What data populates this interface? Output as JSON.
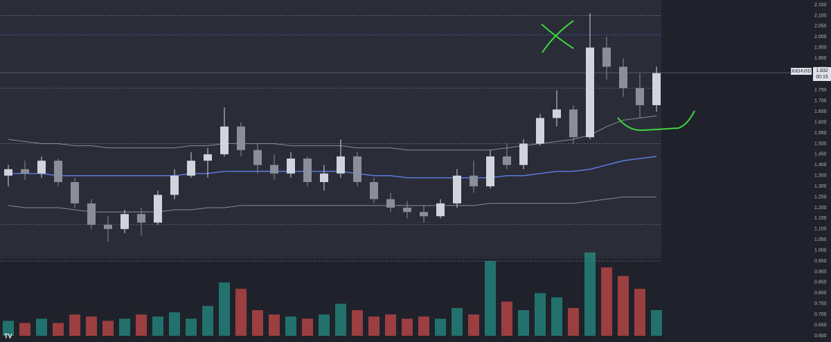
{
  "chart_data": {
    "type": "candlestick",
    "symbol": "EIGEHUSDT",
    "last_price": 1.832,
    "timer": "00:15",
    "open": [
      1.35,
      1.38,
      1.36,
      1.42,
      1.32,
      1.22,
      1.12,
      1.1,
      1.17,
      1.13,
      1.26,
      1.35,
      1.42,
      1.45,
      1.58,
      1.47,
      1.4,
      1.36,
      1.43,
      1.32,
      1.36,
      1.44,
      1.32,
      1.24,
      1.2,
      1.18,
      1.16,
      1.22,
      1.35,
      1.3,
      1.44,
      1.4,
      1.5,
      1.62,
      1.66,
      1.53,
      1.95,
      1.86,
      1.76,
      1.68
    ],
    "high": [
      1.4,
      1.42,
      1.44,
      1.43,
      1.34,
      1.24,
      1.16,
      1.19,
      1.2,
      1.28,
      1.38,
      1.46,
      1.48,
      1.67,
      1.6,
      1.5,
      1.45,
      1.46,
      1.44,
      1.4,
      1.52,
      1.46,
      1.34,
      1.27,
      1.23,
      1.21,
      1.24,
      1.38,
      1.42,
      1.47,
      1.5,
      1.52,
      1.64,
      1.75,
      1.68,
      2.11,
      2.0,
      1.9,
      1.83,
      1.86
    ],
    "low": [
      1.3,
      1.33,
      1.34,
      1.3,
      1.2,
      1.1,
      1.04,
      1.08,
      1.07,
      1.12,
      1.24,
      1.34,
      1.34,
      1.44,
      1.44,
      1.36,
      1.33,
      1.34,
      1.3,
      1.28,
      1.34,
      1.3,
      1.22,
      1.18,
      1.15,
      1.13,
      1.15,
      1.2,
      1.27,
      1.29,
      1.38,
      1.38,
      1.49,
      1.58,
      1.5,
      1.52,
      1.8,
      1.72,
      1.62,
      1.65
    ],
    "close": [
      1.38,
      1.36,
      1.42,
      1.32,
      1.22,
      1.12,
      1.1,
      1.17,
      1.13,
      1.26,
      1.35,
      1.42,
      1.45,
      1.58,
      1.47,
      1.4,
      1.36,
      1.43,
      1.32,
      1.36,
      1.44,
      1.32,
      1.24,
      1.2,
      1.18,
      1.16,
      1.22,
      1.35,
      1.3,
      1.44,
      1.4,
      1.5,
      1.62,
      1.66,
      1.53,
      1.95,
      1.86,
      1.76,
      1.68,
      1.83
    ],
    "volume_top": [
      0.67,
      0.66,
      0.68,
      0.66,
      0.7,
      0.69,
      0.67,
      0.68,
      0.7,
      0.69,
      0.71,
      0.68,
      0.74,
      0.85,
      0.82,
      0.72,
      0.7,
      0.69,
      0.68,
      0.7,
      0.75,
      0.72,
      0.69,
      0.7,
      0.68,
      0.69,
      0.68,
      0.73,
      0.7,
      0.95,
      0.76,
      0.72,
      0.8,
      0.78,
      0.73,
      0.99,
      0.92,
      0.88,
      0.82,
      0.72
    ],
    "up_color": "#d1d4dc",
    "down_color": "#8a8e99",
    "volume_up_color": "#26a69a",
    "volume_down_color": "#ef5350",
    "indicators": [
      {
        "color": "#5b7be0",
        "values": [
          1.36,
          1.36,
          1.36,
          1.35,
          1.35,
          1.35,
          1.35,
          1.35,
          1.35,
          1.35,
          1.35,
          1.36,
          1.36,
          1.37,
          1.37,
          1.37,
          1.37,
          1.37,
          1.37,
          1.37,
          1.37,
          1.36,
          1.35,
          1.35,
          1.34,
          1.34,
          1.34,
          1.34,
          1.34,
          1.34,
          1.35,
          1.35,
          1.36,
          1.37,
          1.37,
          1.38,
          1.4,
          1.42,
          1.43,
          1.44
        ]
      },
      {
        "color": "#8a8e99",
        "values": [
          1.52,
          1.51,
          1.5,
          1.5,
          1.49,
          1.49,
          1.48,
          1.48,
          1.48,
          1.48,
          1.48,
          1.49,
          1.49,
          1.5,
          1.5,
          1.5,
          1.5,
          1.49,
          1.49,
          1.49,
          1.49,
          1.48,
          1.48,
          1.48,
          1.47,
          1.47,
          1.47,
          1.47,
          1.47,
          1.47,
          1.48,
          1.49,
          1.5,
          1.51,
          1.52,
          1.54,
          1.58,
          1.61,
          1.62,
          1.63
        ]
      },
      {
        "color": "#8a8e99",
        "values": [
          1.21,
          1.2,
          1.2,
          1.2,
          1.19,
          1.18,
          1.18,
          1.18,
          1.18,
          1.18,
          1.19,
          1.19,
          1.2,
          1.2,
          1.21,
          1.21,
          1.21,
          1.21,
          1.21,
          1.21,
          1.21,
          1.21,
          1.21,
          1.21,
          1.21,
          1.21,
          1.21,
          1.21,
          1.21,
          1.22,
          1.22,
          1.22,
          1.22,
          1.22,
          1.22,
          1.23,
          1.24,
          1.25,
          1.25,
          1.25
        ]
      }
    ],
    "levels": [
      {
        "value": 2.1,
        "color": "#6b6f7a"
      },
      {
        "value": 2.01,
        "color": "#4a62c9"
      },
      {
        "value": 1.76,
        "color": "#6b6f7a"
      },
      {
        "value": 1.5,
        "color": "#6b6f7a"
      },
      {
        "value": 1.12,
        "color": "#6b6f7a"
      },
      {
        "value": 0.95,
        "color": "#6b6f7a"
      }
    ],
    "ylim": [
      0.6,
      2.15
    ],
    "grid": false,
    "yticks": [
      {
        "value": 0.6,
        "label": "0.600"
      },
      {
        "value": 0.65,
        "label": "0.650"
      },
      {
        "value": 0.7,
        "label": "0.700"
      },
      {
        "value": 0.75,
        "label": "0.750"
      },
      {
        "value": 0.8,
        "label": "0.800"
      },
      {
        "value": 0.85,
        "label": "0.850"
      },
      {
        "value": 0.9,
        "label": "0.900"
      },
      {
        "value": 0.95,
        "label": "0.950"
      },
      {
        "value": 1.0,
        "label": "1.000"
      },
      {
        "value": 1.05,
        "label": "1.050"
      },
      {
        "value": 1.1,
        "label": "1.100"
      },
      {
        "value": 1.15,
        "label": "1.150"
      },
      {
        "value": 1.2,
        "label": "1.200"
      },
      {
        "value": 1.25,
        "label": "1.250"
      },
      {
        "value": 1.3,
        "label": "1.300"
      },
      {
        "value": 1.35,
        "label": "1.350"
      },
      {
        "value": 1.4,
        "label": "1.400"
      },
      {
        "value": 1.45,
        "label": "1.450"
      },
      {
        "value": 1.5,
        "label": "1.500"
      },
      {
        "value": 1.55,
        "label": "1.550"
      },
      {
        "value": 1.6,
        "label": "1.600"
      },
      {
        "value": 1.65,
        "label": "1.650"
      },
      {
        "value": 1.7,
        "label": "1.700"
      },
      {
        "value": 1.75,
        "label": "1.750"
      },
      {
        "value": 1.85,
        "label": "1.850"
      },
      {
        "value": 1.9,
        "label": "1.900"
      },
      {
        "value": 1.95,
        "label": "1.950"
      },
      {
        "value": 2.0,
        "label": "2.000"
      },
      {
        "value": 2.05,
        "label": "2.050"
      },
      {
        "value": 2.1,
        "label": "2.100"
      },
      {
        "value": 2.15,
        "label": "2.150"
      }
    ]
  }
}
